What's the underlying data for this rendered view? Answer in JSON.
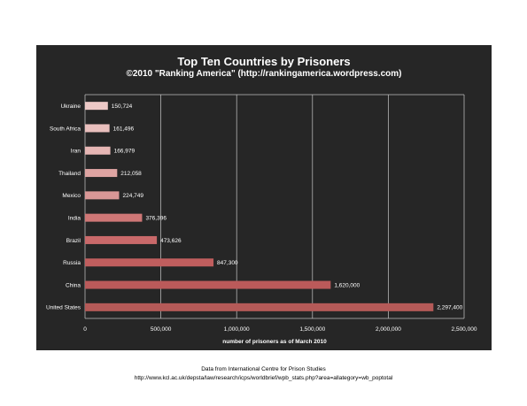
{
  "chart_data": {
    "type": "bar",
    "orientation": "horizontal",
    "title": "Top Ten Countries by Prisoners",
    "subtitle": "©2010 \"Ranking America\" (http://rankingamerica.wordpress.com)",
    "xlabel": "number of prisoners as of March 2010",
    "ylabel": "",
    "xlim": [
      0,
      2500000
    ],
    "x_ticks": [
      "0",
      "500,000",
      "1,000,000",
      "1,500,000",
      "2,000,000",
      "2,500,000"
    ],
    "x_tick_values": [
      0,
      500000,
      1000000,
      1500000,
      2000000,
      2500000
    ],
    "grid": true,
    "legend": "none",
    "categories": [
      "Ukraine",
      "South Africa",
      "Iran",
      "Thailand",
      "Mexico",
      "India",
      "Brazil",
      "Russia",
      "China",
      "United States"
    ],
    "values": [
      150724,
      161496,
      166979,
      212058,
      224749,
      376396,
      473626,
      847300,
      1620000,
      2297400
    ],
    "data_labels": [
      "150,724",
      "161,496",
      "166,979",
      "212,058",
      "224,749",
      "376,396",
      "473,626",
      "847,300",
      "1,620,000",
      "2,297,400"
    ],
    "bar_colors": [
      "#ecc8c6",
      "#e9bfbd",
      "#e6b6b4",
      "#dea4a2",
      "#d99796",
      "#cf7776",
      "#c9696a",
      "#c05e5e",
      "#bb5a5a",
      "#b55a58"
    ],
    "background_color": "#262626",
    "grid_color": "#bfbfbf",
    "text_color": "#ffffff"
  },
  "footer": {
    "source_line": "Data from International Centre for Prison Studies",
    "source_url": "http://www.kcl.ac.uk/depsta/law/research/icps/worldbrief/wpb_stats.php?area=allategory=wb_poptotal"
  }
}
